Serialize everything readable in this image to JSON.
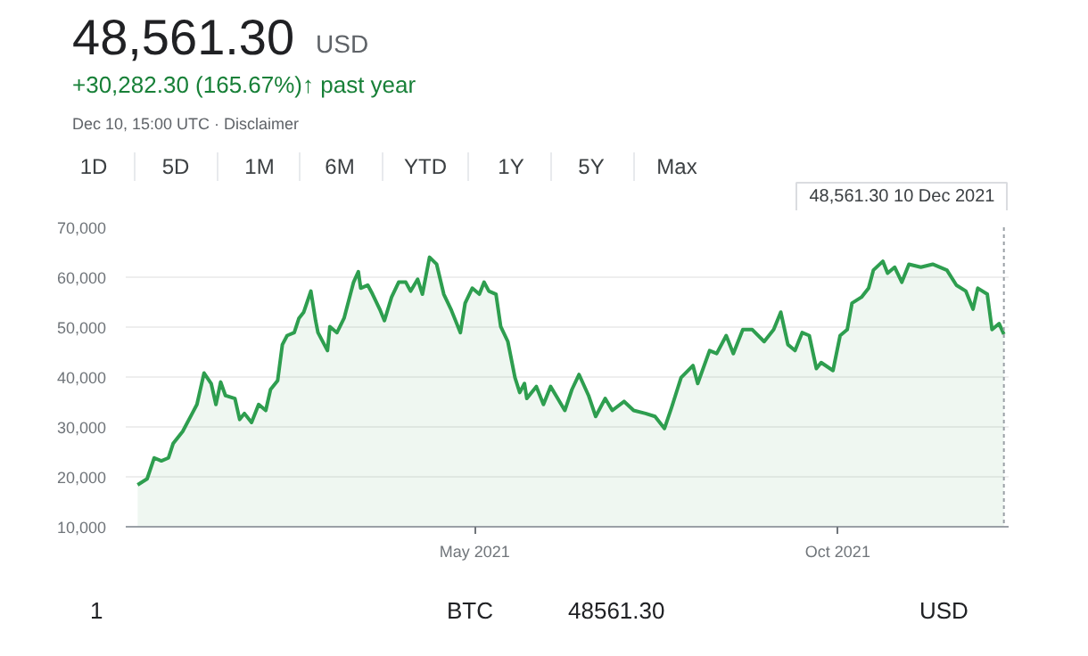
{
  "chart_data": {
    "type": "area",
    "title": "48,561.30",
    "annotations": [
      "USD",
      "+30,282.30 (165.67%)↑ past year",
      "Dec 10, 15:00 UTC · Disclaimer",
      "1D",
      "5D",
      "1M",
      "6M",
      "YTD",
      "1Y",
      "5Y",
      "Max",
      "1",
      "BTC",
      "48561.30",
      "USD",
      "48,561.30  10 Dec 2021"
    ],
    "ref_lines": [
      {
        "axis": "x",
        "value": "2021-12-10",
        "line_style": "dotted",
        "color": "#9aa0a6"
      }
    ],
    "series": [
      {
        "color": "#2e9e4f",
        "x": [
          "2020-12-10",
          "2020-12-14",
          "2020-12-17",
          "2020-12-20",
          "2020-12-23",
          "2020-12-25",
          "2020-12-29",
          "2021-01-02",
          "2021-01-04",
          "2021-01-07",
          "2021-01-10",
          "2021-01-12",
          "2021-01-14",
          "2021-01-16",
          "2021-01-20",
          "2021-01-22",
          "2021-01-24",
          "2021-01-27",
          "2021-01-30",
          "2021-02-02",
          "2021-02-04",
          "2021-02-07",
          "2021-02-09",
          "2021-02-11",
          "2021-02-14",
          "2021-02-16",
          "2021-02-18",
          "2021-02-21",
          "2021-02-23",
          "2021-02-24",
          "2021-02-28",
          "2021-03-01",
          "2021-03-04",
          "2021-03-07",
          "2021-03-11",
          "2021-03-13",
          "2021-03-14",
          "2021-03-17",
          "2021-03-19",
          "2021-03-22",
          "2021-03-24",
          "2021-03-27",
          "2021-03-30",
          "2021-04-02",
          "2021-04-04",
          "2021-04-07",
          "2021-04-09",
          "2021-04-12",
          "2021-04-15",
          "2021-04-18",
          "2021-04-21",
          "2021-04-25",
          "2021-04-27",
          "2021-04-30",
          "2021-05-03",
          "2021-05-05",
          "2021-05-07",
          "2021-05-10",
          "2021-05-12",
          "2021-05-15",
          "2021-05-18",
          "2021-05-20",
          "2021-05-22",
          "2021-05-23",
          "2021-05-27",
          "2021-05-30",
          "2021-06-02",
          "2021-06-05",
          "2021-06-08",
          "2021-06-11",
          "2021-06-14",
          "2021-06-18",
          "2021-06-21",
          "2021-06-25",
          "2021-06-28",
          "2021-07-03",
          "2021-07-07",
          "2021-07-12",
          "2021-07-16",
          "2021-07-20",
          "2021-07-23",
          "2021-07-27",
          "2021-08-01",
          "2021-08-03",
          "2021-08-08",
          "2021-08-11",
          "2021-08-15",
          "2021-08-18",
          "2021-08-22",
          "2021-08-26",
          "2021-08-31",
          "2021-09-04",
          "2021-09-07",
          "2021-09-10",
          "2021-09-13",
          "2021-09-16",
          "2021-09-19",
          "2021-09-22",
          "2021-09-24",
          "2021-09-29",
          "2021-10-02",
          "2021-10-05",
          "2021-10-07",
          "2021-10-11",
          "2021-10-14",
          "2021-10-16",
          "2021-10-20",
          "2021-10-22",
          "2021-10-25",
          "2021-10-28",
          "2021-10-31",
          "2021-11-05",
          "2021-11-10",
          "2021-11-16",
          "2021-11-20",
          "2021-11-24",
          "2021-11-27",
          "2021-11-29",
          "2021-12-03",
          "2021-12-05",
          "2021-12-08",
          "2021-12-10"
        ],
        "values": [
          18400,
          19600,
          23800,
          23200,
          23800,
          26700,
          29100,
          32700,
          34500,
          40800,
          38700,
          34500,
          39000,
          36300,
          35700,
          31500,
          32700,
          30900,
          34500,
          33300,
          37500,
          39300,
          46500,
          48300,
          48900,
          51800,
          53000,
          57200,
          51300,
          48900,
          45300,
          50100,
          48900,
          51800,
          59000,
          61100,
          57800,
          58400,
          56600,
          53600,
          51300,
          56000,
          59000,
          59000,
          57200,
          59600,
          56600,
          64000,
          62600,
          56600,
          53600,
          48900,
          54800,
          57800,
          56600,
          59000,
          57200,
          56600,
          50100,
          47100,
          39900,
          36900,
          38700,
          35700,
          38100,
          34500,
          38100,
          35700,
          33300,
          37500,
          40500,
          36300,
          32100,
          35700,
          33300,
          35100,
          33300,
          32700,
          32100,
          29700,
          33900,
          39900,
          42300,
          38700,
          45300,
          44700,
          48300,
          44700,
          49500,
          49500,
          47100,
          49500,
          53000,
          46500,
          45300,
          48900,
          48300,
          41700,
          42900,
          41300,
          48300,
          49500,
          54800,
          56000,
          57800,
          61400,
          63200,
          60800,
          62000,
          59000,
          62600,
          62000,
          62600,
          61400,
          58400,
          57200,
          53600,
          57800,
          56600,
          49500,
          50700,
          48561.3
        ]
      }
    ],
    "xlim": [
      "2020-12-05",
      "2021-12-12"
    ],
    "xticks": [
      {
        "value": "2021-05-01",
        "label": "May 2021"
      },
      {
        "value": "2021-10-01",
        "label": "Oct 2021"
      }
    ],
    "ylim": [
      10000,
      70000
    ],
    "yticks": [
      {
        "value": 10000,
        "label": "10,000"
      },
      {
        "value": 20000,
        "label": "20,000"
      },
      {
        "value": 30000,
        "label": "30,000"
      },
      {
        "value": 40000,
        "label": "40,000"
      },
      {
        "value": 50000,
        "label": "50,000"
      },
      {
        "value": 60000,
        "label": "60,000"
      },
      {
        "value": 70000,
        "label": "70,000"
      }
    ],
    "grid": "y"
  }
}
